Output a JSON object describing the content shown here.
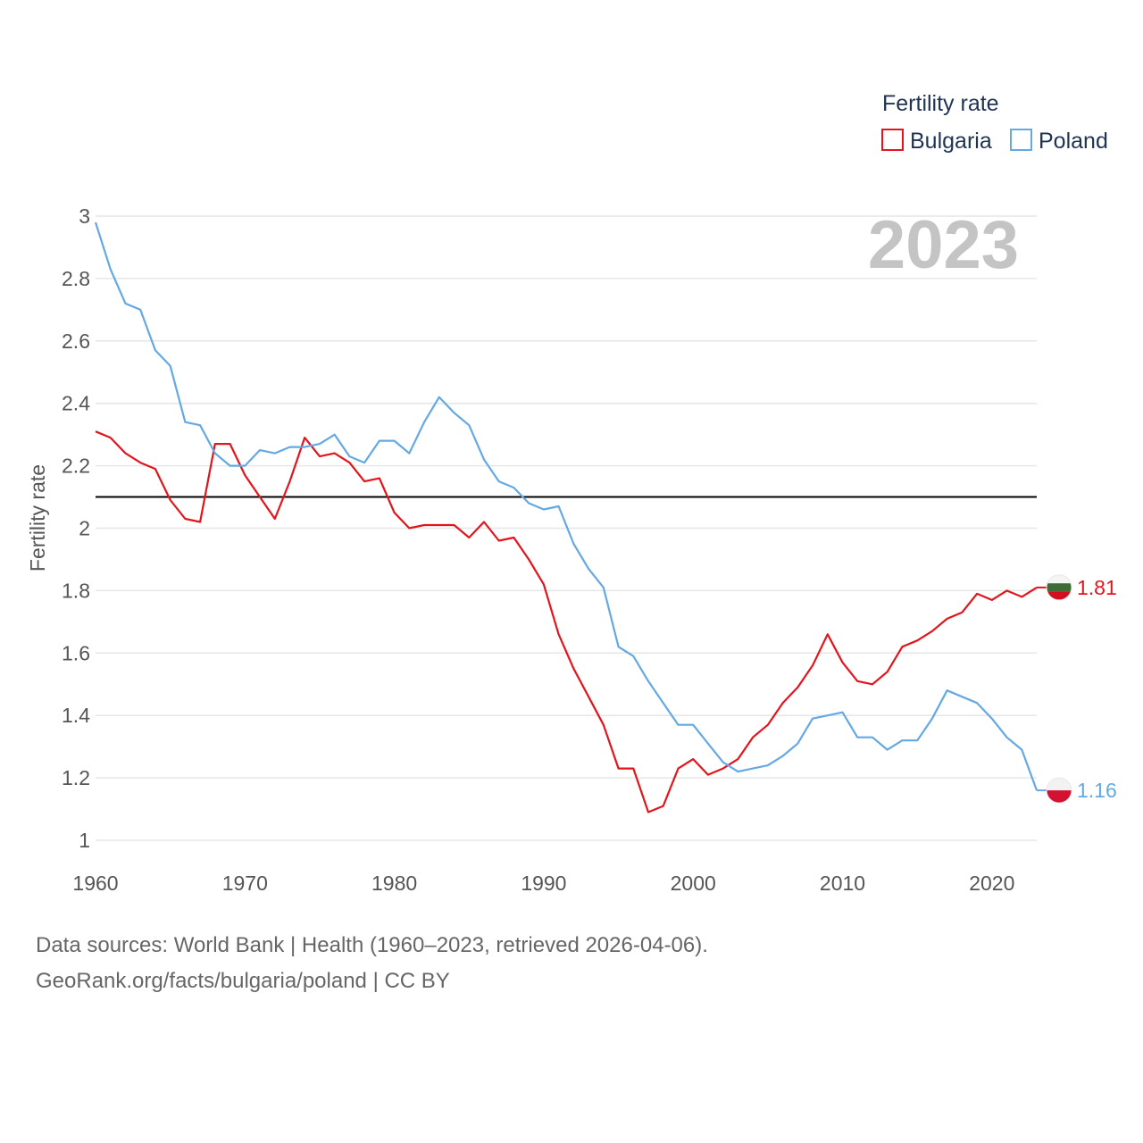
{
  "legend": {
    "title": "Fertility rate",
    "items": [
      {
        "label": "Bulgaria",
        "color": "#e3141b"
      },
      {
        "label": "Poland",
        "color": "#64a8e4"
      }
    ]
  },
  "year_display": "2023",
  "footer": {
    "line1": "Data sources: World Bank | Health (1960–2023, retrieved 2026-04-06).",
    "line2": "GeoRank.org/facts/bulgaria/poland | CC BY"
  },
  "chart_data": {
    "type": "line",
    "title": "",
    "xlabel": "",
    "ylabel": "Fertility rate",
    "xlim": [
      1960,
      2023
    ],
    "ylim": [
      1,
      3
    ],
    "x_ticks": [
      1960,
      1970,
      1980,
      1990,
      2000,
      2010,
      2020
    ],
    "y_ticks": [
      1,
      1.2,
      1.4,
      1.6,
      1.8,
      2,
      2.2,
      2.4,
      2.6,
      2.8,
      3
    ],
    "grid": true,
    "reference_line": {
      "y": 2.1,
      "color": "#000000"
    },
    "x": [
      1960,
      1961,
      1962,
      1963,
      1964,
      1965,
      1966,
      1967,
      1968,
      1969,
      1970,
      1971,
      1972,
      1973,
      1974,
      1975,
      1976,
      1977,
      1978,
      1979,
      1980,
      1981,
      1982,
      1983,
      1984,
      1985,
      1986,
      1987,
      1988,
      1989,
      1990,
      1991,
      1992,
      1993,
      1994,
      1995,
      1996,
      1997,
      1998,
      1999,
      2000,
      2001,
      2002,
      2003,
      2004,
      2005,
      2006,
      2007,
      2008,
      2009,
      2010,
      2011,
      2012,
      2013,
      2014,
      2015,
      2016,
      2017,
      2018,
      2019,
      2020,
      2021,
      2022,
      2023
    ],
    "series": [
      {
        "name": "Bulgaria",
        "color": "#e3141b",
        "end_label": "1.81",
        "values": [
          2.31,
          2.29,
          2.24,
          2.21,
          2.19,
          2.09,
          2.03,
          2.02,
          2.27,
          2.27,
          2.17,
          2.1,
          2.03,
          2.15,
          2.29,
          2.23,
          2.24,
          2.21,
          2.15,
          2.16,
          2.05,
          2.0,
          2.01,
          2.01,
          2.01,
          1.97,
          2.02,
          1.96,
          1.97,
          1.9,
          1.82,
          1.66,
          1.55,
          1.46,
          1.37,
          1.23,
          1.23,
          1.09,
          1.11,
          1.23,
          1.26,
          1.21,
          1.23,
          1.26,
          1.33,
          1.37,
          1.44,
          1.49,
          1.56,
          1.66,
          1.57,
          1.51,
          1.5,
          1.54,
          1.62,
          1.64,
          1.67,
          1.71,
          1.73,
          1.79,
          1.77,
          1.8,
          1.78,
          1.81
        ]
      },
      {
        "name": "Poland",
        "color": "#64a8e4",
        "end_label": "1.16",
        "values": [
          2.98,
          2.83,
          2.72,
          2.7,
          2.57,
          2.52,
          2.34,
          2.33,
          2.24,
          2.2,
          2.2,
          2.25,
          2.24,
          2.26,
          2.26,
          2.27,
          2.3,
          2.23,
          2.21,
          2.28,
          2.28,
          2.24,
          2.34,
          2.42,
          2.37,
          2.33,
          2.22,
          2.15,
          2.13,
          2.08,
          2.06,
          2.07,
          1.95,
          1.87,
          1.81,
          1.62,
          1.59,
          1.51,
          1.44,
          1.37,
          1.37,
          1.31,
          1.25,
          1.22,
          1.23,
          1.24,
          1.27,
          1.31,
          1.39,
          1.4,
          1.41,
          1.33,
          1.33,
          1.29,
          1.32,
          1.32,
          1.39,
          1.48,
          1.46,
          1.44,
          1.39,
          1.33,
          1.29,
          1.16
        ]
      }
    ]
  }
}
